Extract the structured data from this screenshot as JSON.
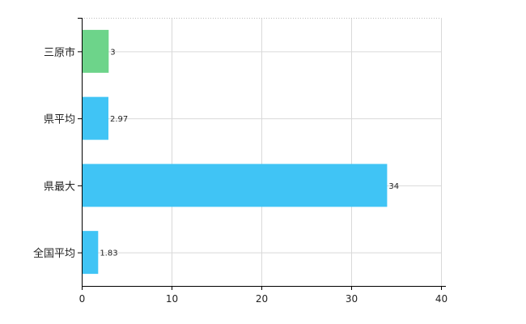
{
  "chart_data": {
    "type": "bar",
    "orientation": "horizontal",
    "categories": [
      "三原市",
      "県平均",
      "県最大",
      "全国平均"
    ],
    "values": [
      3,
      2.97,
      34,
      1.83
    ],
    "value_labels": [
      "3",
      "2.97",
      "34",
      "1.83"
    ],
    "bar_colors": [
      "#6dd48a",
      "#40c4f5",
      "#40c4f5",
      "#40c4f5"
    ],
    "xlim": [
      0,
      40
    ],
    "xticks": [
      0,
      10,
      20,
      30,
      40
    ],
    "xtick_labels": [
      "0",
      "10",
      "20",
      "30",
      "40"
    ],
    "title": "",
    "xlabel": "",
    "ylabel": "",
    "grid": true,
    "legend": "none"
  }
}
